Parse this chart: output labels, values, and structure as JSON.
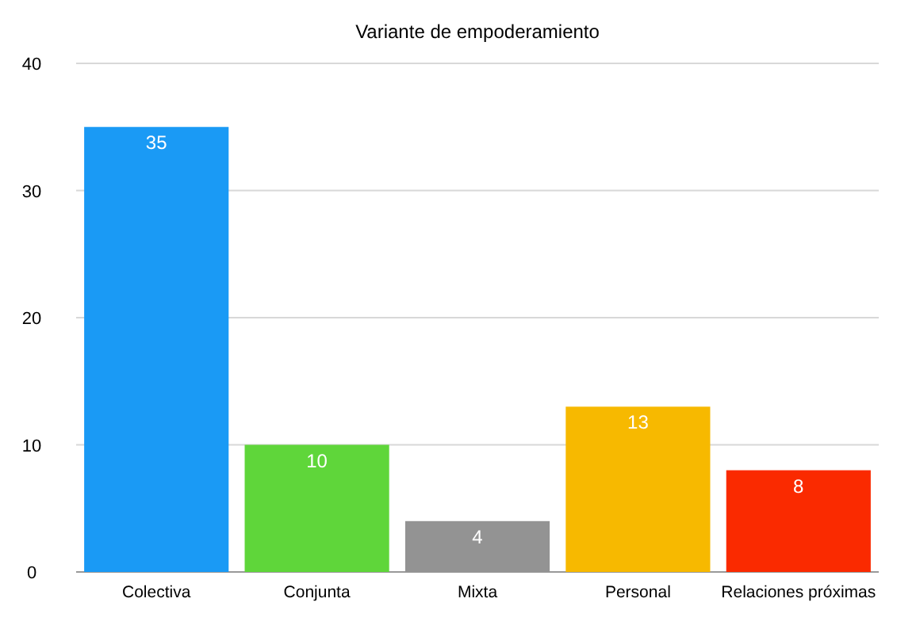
{
  "chart_data": {
    "type": "bar",
    "title": "Variante de empoderamiento",
    "categories": [
      "Colectiva",
      "Conjunta",
      "Mixta",
      "Personal",
      "Relaciones próximas"
    ],
    "values": [
      35,
      10,
      4,
      13,
      8
    ],
    "colors": [
      "#1a9af5",
      "#5fd63a",
      "#939393",
      "#f7b900",
      "#fa2a00"
    ],
    "ylim": [
      0,
      40
    ],
    "yticks": [
      0,
      10,
      20,
      30,
      40
    ],
    "grid": "y",
    "data_labels": true
  }
}
